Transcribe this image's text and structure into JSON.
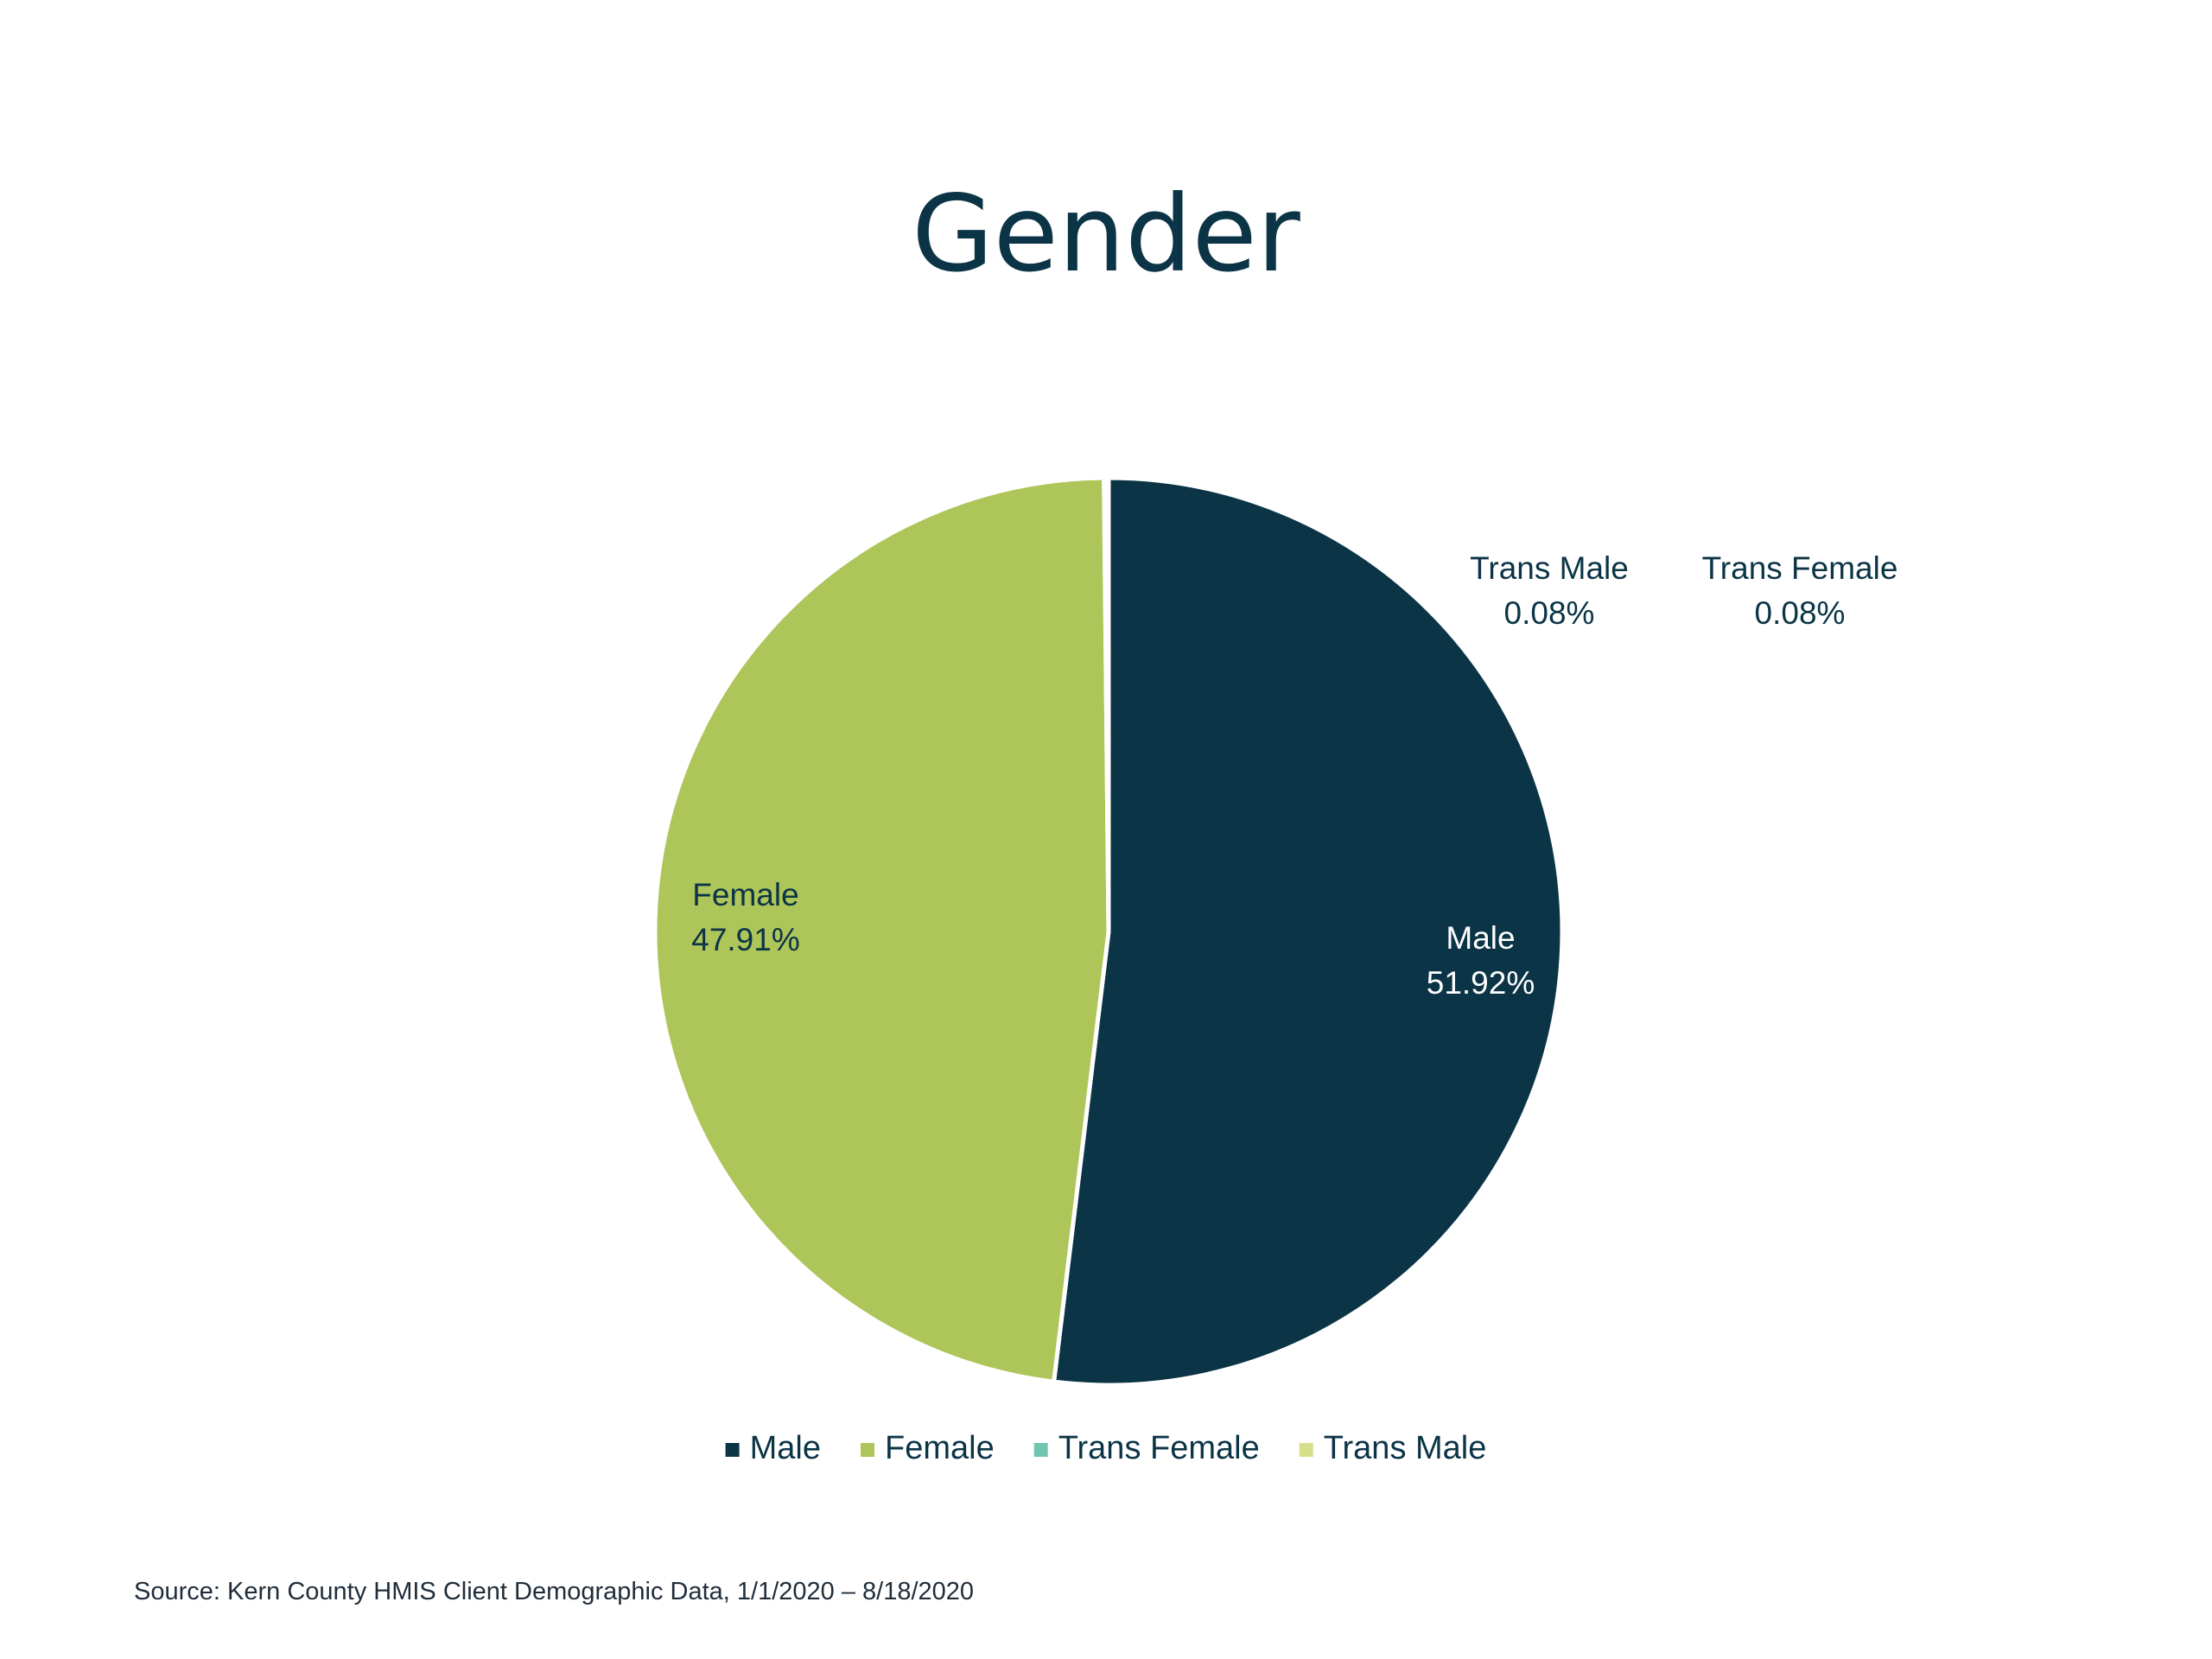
{
  "title": "Gender",
  "source": "Source: Kern County HMIS Client Demographic Data, 1/1/2020 – 8/18/2020",
  "chart_data": {
    "type": "pie",
    "title": "Gender",
    "legend_position": "bottom",
    "start_angle": "12 o'clock, clockwise",
    "series": [
      {
        "name": "Male",
        "value": 51.92,
        "label": "51.92%",
        "color": "#0b3446",
        "label_color": "#ffffff"
      },
      {
        "name": "Female",
        "value": 47.91,
        "label": "47.91%",
        "color": "#aec55a",
        "label_color": "#0b3446"
      },
      {
        "name": "Trans Female",
        "value": 0.08,
        "label": "0.08%",
        "color": "#6fc6b0",
        "label_color": "#0b3446"
      },
      {
        "name": "Trans Male",
        "value": 0.08,
        "label": "0.08%",
        "color": "#d6e08a",
        "label_color": "#0b3446"
      }
    ]
  }
}
